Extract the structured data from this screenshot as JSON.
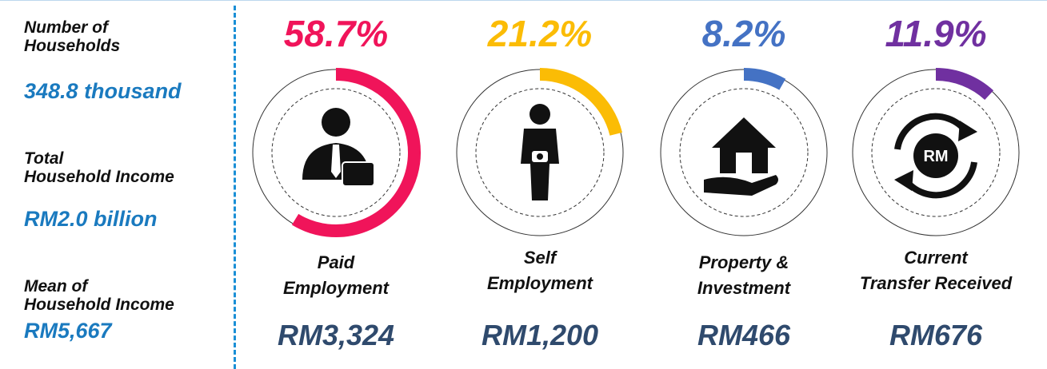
{
  "summary": [
    {
      "label": [
        "Number of",
        "Households"
      ],
      "value": "348.8 thousand"
    },
    {
      "label": [
        "Total",
        "Household Income"
      ],
      "value": "RM2.0 billion"
    },
    {
      "label": [
        "Mean of",
        "Household Income"
      ],
      "value": "RM5,667"
    }
  ],
  "sources": [
    {
      "label": [
        "Paid",
        "Employment"
      ],
      "share": 58.7,
      "share_label": "58.7%",
      "color": "#f0145a",
      "mean": "RM3,324"
    },
    {
      "label": [
        "Self",
        "Employment"
      ],
      "share": 21.2,
      "share_label": "21.2%",
      "color": "#fbbc05",
      "mean": "RM1,200"
    },
    {
      "label": [
        "Property &",
        "Investment"
      ],
      "share": 8.2,
      "share_label": "8.2%",
      "color": "#4472c4",
      "mean": "RM466"
    },
    {
      "label": [
        "Current",
        "Transfer Received"
      ],
      "share": 11.9,
      "share_label": "11.9%",
      "color": "#7030a0",
      "mean": "RM676"
    }
  ]
}
